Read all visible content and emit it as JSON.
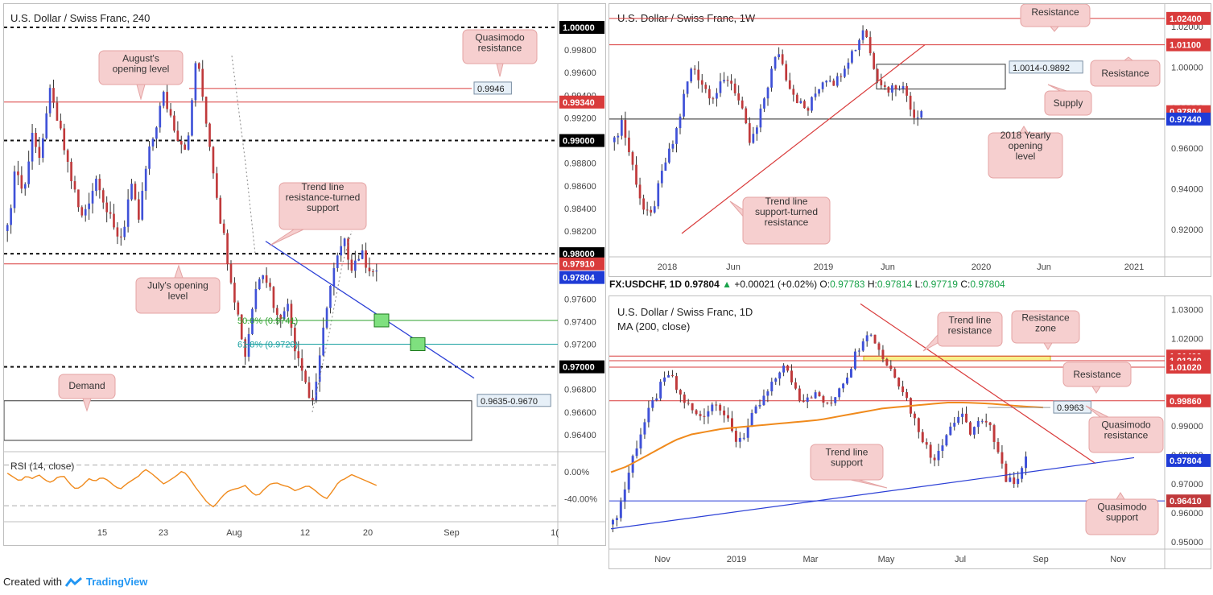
{
  "colors": {
    "up": "#3f51d8",
    "down": "#c0393b",
    "bull": "#3f51d8",
    "bear": "#c0393b",
    "res": "#d93b3b",
    "trend_blue": "#2b3fd6",
    "ma": "#f08a1c",
    "callout_bg": "#f6cfcf",
    "callout_border": "#e4a3a3",
    "rsi": "#f08a1c",
    "fib50": "#2ca02c",
    "fib618": "#19a0a0"
  },
  "footer": {
    "prefix": "Created with",
    "brand": "TradingView"
  },
  "infobar": {
    "symbol": "FX:USDCHF, 1D",
    "last": "0.97804",
    "change": "+0.00021 (+0.02%)",
    "open_label": "O:",
    "open": "0.97783",
    "high_label": "H:",
    "high": "0.97814",
    "low_label": "L:",
    "low": "0.97719",
    "close_label": "C:",
    "close": "0.97804"
  },
  "chart_data": [
    {
      "id": "h4",
      "type": "candlestick",
      "title": "U.S. Dollar / Swiss Franc, 240",
      "ylim": [
        0.9625,
        1.0005
      ],
      "y_ticks": [
        "1.00000",
        "0.99800",
        "0.99600",
        "0.99400",
        "0.99200",
        "0.99000",
        "0.98800",
        "0.98600",
        "0.98400",
        "0.98200",
        "0.98000",
        "0.97800",
        "0.97600",
        "0.97400",
        "0.97200",
        "0.97000",
        "0.96800",
        "0.96600",
        "0.96400"
      ],
      "x_ticks": [
        "15",
        "23",
        "Aug",
        "12",
        "20",
        "Sep",
        "1("
      ],
      "levels": [
        {
          "label": "1.00000",
          "value": 1.0,
          "style": "dashed-black"
        },
        {
          "label": "0.99340",
          "value": 0.9934,
          "style": "red"
        },
        {
          "label": "0.99000",
          "value": 0.99,
          "style": "dashed-black"
        },
        {
          "label": "0.98000",
          "value": 0.98,
          "style": "dashed-black"
        },
        {
          "label": "0.97910",
          "value": 0.9791,
          "style": "red"
        },
        {
          "label": "0.97804",
          "value": 0.97804,
          "style": "current"
        },
        {
          "label": "0.97000",
          "value": 0.97,
          "style": "dashed-black"
        }
      ],
      "marker_labels": [
        {
          "text": "0.9946",
          "value": 0.9946
        },
        {
          "text": "0.9635-0.9670",
          "value": 0.967
        }
      ],
      "fib": [
        {
          "text": "50.0% (0.9741)",
          "value": 0.9741
        },
        {
          "text": "61.8% (0.9720)",
          "value": 0.972
        }
      ],
      "annotations": [
        "Quasimodo resistance",
        "August's opening level",
        "Trend line resistance-turned support",
        "July's opening level",
        "Demand"
      ],
      "demand_zone": [
        0.9635,
        0.967
      ],
      "path": [
        0.982,
        0.988,
        0.985,
        0.991,
        0.9875,
        0.9945,
        0.992,
        0.989,
        0.986,
        0.983,
        0.985,
        0.987,
        0.984,
        0.982,
        0.9815,
        0.986,
        0.983,
        0.988,
        0.991,
        0.994,
        0.992,
        0.99,
        0.9895,
        0.9975,
        0.993,
        0.988,
        0.983,
        0.979,
        0.975,
        0.971,
        0.976,
        0.979,
        0.977,
        0.974,
        0.976,
        0.972,
        0.97,
        0.9665,
        0.97,
        0.976,
        0.979,
        0.981,
        0.979,
        0.98,
        0.979,
        0.978
      ]
    },
    {
      "id": "w1",
      "type": "candlestick",
      "title": "U.S. Dollar / Swiss Franc, 1W",
      "ylim": [
        0.9065,
        1.0295
      ],
      "y_ticks": [
        "1.02000",
        "1.00000",
        "0.98000",
        "0.96000",
        "0.94000",
        "0.92000"
      ],
      "x_ticks": [
        "2018",
        "Jun",
        "2019",
        "Jun",
        "2020",
        "Jun",
        "2021"
      ],
      "levels": [
        {
          "label": "1.02400",
          "value": 1.024,
          "style": "red"
        },
        {
          "label": "1.01100",
          "value": 1.011,
          "style": "red"
        },
        {
          "label": "0.97804",
          "value": 0.97804,
          "style": "current-red"
        },
        {
          "label": "0.97440",
          "value": 0.9744,
          "style": "blue-line"
        }
      ],
      "marker_labels": [
        {
          "text": "1.0014-0.9892",
          "value": 1.0014
        }
      ],
      "supply_zone": [
        0.9892,
        1.0014
      ],
      "annotations": [
        "Resistance",
        "Resistance",
        "Supply",
        "2018 Yearly opening level",
        "Trend line support-turned resistance"
      ],
      "path": [
        0.963,
        0.974,
        0.959,
        0.945,
        0.93,
        0.925,
        0.938,
        0.952,
        0.96,
        0.973,
        0.99,
        1.001,
        0.994,
        0.988,
        0.986,
        0.991,
        0.995,
        0.988,
        0.976,
        0.962,
        0.97,
        0.985,
        0.998,
        1.008,
        0.996,
        0.988,
        0.982,
        0.978,
        0.986,
        0.993,
        0.996,
        0.992,
        1.0,
        1.006,
        1.011,
        1.021,
        1.004,
        0.995,
        0.989,
        0.99,
        0.992,
        0.986,
        0.976,
        0.979
      ]
    },
    {
      "id": "d1",
      "type": "candlestick",
      "title": "U.S. Dollar / Swiss Franc, 1D",
      "subtitle": "MA (200, close)",
      "ylim": [
        0.9475,
        1.0335
      ],
      "y_ticks": [
        "1.03000",
        "1.02000",
        "1.01000",
        "0.99000",
        "0.98000",
        "0.97000",
        "0.96000",
        "0.95000"
      ],
      "x_ticks": [
        "Nov",
        "2019",
        "Mar",
        "May",
        "Jul",
        "Sep",
        "Nov"
      ],
      "levels": [
        {
          "label": "1.01400",
          "value": 1.014,
          "style": "red"
        },
        {
          "label": "1.01240",
          "value": 1.0124,
          "style": "red"
        },
        {
          "label": "1.01020",
          "value": 1.0102,
          "style": "red"
        },
        {
          "label": "0.99860",
          "value": 0.9986,
          "style": "red"
        },
        {
          "label": "0.97804",
          "value": 0.97804,
          "style": "current"
        },
        {
          "label": "0.96410",
          "value": 0.9641,
          "style": "blue-line"
        }
      ],
      "marker_labels": [
        {
          "text": "0.9963",
          "value": 0.9963
        }
      ],
      "resistance_zone": [
        1.0124,
        1.014
      ],
      "annotations": [
        "Trend line resistance",
        "Resistance zone",
        "Resistance",
        "Quasimodo resistance",
        "Trend line support",
        "Quasimodo support"
      ],
      "path": [
        0.956,
        0.965,
        0.978,
        0.988,
        0.996,
        1.003,
        1.008,
        1.001,
        0.997,
        0.993,
        0.995,
        0.999,
        0.993,
        0.985,
        0.987,
        0.994,
        0.999,
        1.004,
        1.011,
        1.006,
        0.999,
        1.001,
        1.0,
        0.996,
        1.003,
        1.008,
        1.016,
        1.023,
        1.019,
        1.012,
        1.008,
        1.002,
        0.993,
        0.986,
        0.978,
        0.984,
        0.99,
        0.994,
        0.988,
        0.991,
        0.99,
        0.983,
        0.97,
        0.972,
        0.978
      ],
      "ma200": [
        0.974,
        0.976,
        0.979,
        0.982,
        0.985,
        0.987,
        0.988,
        0.989,
        0.9895,
        0.99,
        0.9905,
        0.991,
        0.9915,
        0.992,
        0.993,
        0.994,
        0.995,
        0.996,
        0.9965,
        0.997,
        0.9975,
        0.998,
        0.998,
        0.9978,
        0.9975,
        0.997,
        0.9966,
        0.9963
      ]
    }
  ],
  "rsi": {
    "label": "RSI (14, close)",
    "ticks": [
      "0.00%",
      "-40.00%"
    ],
    "ylim": [
      -70,
      25
    ],
    "values": [
      -2,
      -8,
      -14,
      -6,
      -10,
      -4,
      -12,
      -16,
      -8,
      -6,
      -18,
      -26,
      -20,
      -10,
      -14,
      -8,
      -12,
      -20,
      -26,
      -18,
      -12,
      -6,
      4,
      -2,
      -10,
      -18,
      -12,
      -6,
      2,
      -8,
      -22,
      -34,
      -46,
      -52,
      -40,
      -30,
      -26,
      -24,
      -20,
      -30,
      -36,
      -26,
      -18,
      -16,
      -20,
      -22,
      -28,
      -24,
      -20,
      -26,
      -34,
      -40,
      -28,
      -14,
      -10,
      -4,
      -8,
      -12,
      -16,
      -20
    ]
  }
}
